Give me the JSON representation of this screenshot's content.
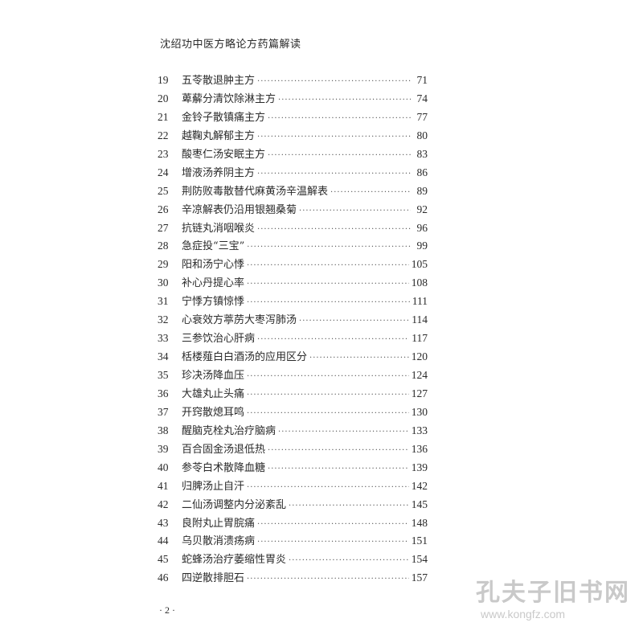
{
  "header": {
    "title": "沈绍功中医方略论方药篇解读"
  },
  "toc": [
    {
      "num": "19",
      "title": "五苓散退肿主方",
      "page": "71"
    },
    {
      "num": "20",
      "title": "萆薢分清饮除淋主方",
      "page": "74"
    },
    {
      "num": "21",
      "title": "金铃子散镇痛主方",
      "page": "77"
    },
    {
      "num": "22",
      "title": "越鞠丸解郁主方",
      "page": "80"
    },
    {
      "num": "23",
      "title": "酸枣仁汤安眠主方",
      "page": "83"
    },
    {
      "num": "24",
      "title": "增液汤养阴主方",
      "page": "86"
    },
    {
      "num": "25",
      "title": "荆防败毒散替代麻黄汤辛温解表",
      "page": "89"
    },
    {
      "num": "26",
      "title": "辛凉解表仍沿用银翘桑菊",
      "page": "92"
    },
    {
      "num": "27",
      "title": "抗链丸消咽喉炎",
      "page": "96"
    },
    {
      "num": "28",
      "title": "急症投“三宝”",
      "page": "99"
    },
    {
      "num": "29",
      "title": "阳和汤宁心悸",
      "page": "105"
    },
    {
      "num": "30",
      "title": "补心丹提心率",
      "page": "108"
    },
    {
      "num": "31",
      "title": "宁悸方镇惊悸",
      "page": "111"
    },
    {
      "num": "32",
      "title": "心衰效方葶苈大枣泻肺汤",
      "page": "114"
    },
    {
      "num": "33",
      "title": "三参饮治心肝病",
      "page": "117"
    },
    {
      "num": "34",
      "title": "栝楼薤白白酒汤的应用区分",
      "page": "120"
    },
    {
      "num": "35",
      "title": "珍决汤降血压",
      "page": "124"
    },
    {
      "num": "36",
      "title": "大雄丸止头痛",
      "page": "127"
    },
    {
      "num": "37",
      "title": "开窍散熄耳鸣",
      "page": "130"
    },
    {
      "num": "38",
      "title": "醒脑克栓丸治疗脑病",
      "page": "133"
    },
    {
      "num": "39",
      "title": "百合固金汤退低热",
      "page": "136"
    },
    {
      "num": "40",
      "title": "参苓白术散降血糖",
      "page": "139"
    },
    {
      "num": "41",
      "title": "归脾汤止自汗",
      "page": "142"
    },
    {
      "num": "42",
      "title": "二仙汤调整内分泌紊乱",
      "page": "145"
    },
    {
      "num": "43",
      "title": "良附丸止胃脘痛",
      "page": "148"
    },
    {
      "num": "44",
      "title": "乌贝散消溃疡病",
      "page": "151"
    },
    {
      "num": "45",
      "title": "蛇蜂汤治疗萎缩性胃炎",
      "page": "154"
    },
    {
      "num": "46",
      "title": "四逆散排胆石",
      "page": "157"
    }
  ],
  "footer": {
    "page_number": "· 2 ·"
  },
  "watermark": {
    "text": "孔夫子旧书网",
    "url": "www.kongfz.com"
  }
}
